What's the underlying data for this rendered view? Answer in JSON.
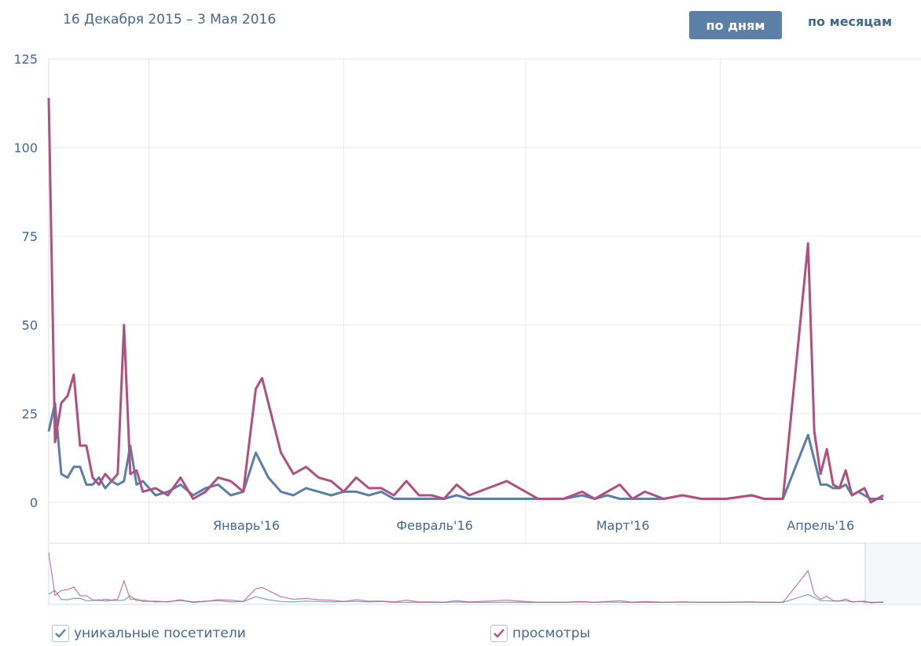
{
  "header": {
    "date_range": "16 Декабря 2015 – 3 Мая 2016",
    "btn_by_day": "по дням",
    "btn_by_month": "по месяцам"
  },
  "legend": {
    "unique_label": "уникальные посетители",
    "views_label": "просмотры"
  },
  "colors": {
    "unique": "#5b7fa6",
    "views": "#b0507f",
    "grid": "#e6e8ec",
    "axis_text": "#45678f"
  },
  "chart_data": {
    "type": "line",
    "x_start": "2015-12-16",
    "x_end": "2016-05-03",
    "ylim": [
      0,
      125
    ],
    "yticks": [
      0,
      25,
      50,
      75,
      100,
      125
    ],
    "month_ticks": [
      {
        "label": "Январь'16",
        "date": "2016-01-01"
      },
      {
        "label": "Февраль'16",
        "date": "2016-02-01"
      },
      {
        "label": "Март'16",
        "date": "2016-03-01"
      },
      {
        "label": "Апрель'16",
        "date": "2016-04-01"
      }
    ],
    "grid": true,
    "legend_position": "bottom",
    "series": [
      {
        "name": "уникальные посетители",
        "points": [
          [
            "2015-12-16",
            20
          ],
          [
            "2015-12-17",
            28
          ],
          [
            "2015-12-18",
            8
          ],
          [
            "2015-12-19",
            7
          ],
          [
            "2015-12-20",
            10
          ],
          [
            "2015-12-21",
            10
          ],
          [
            "2015-12-22",
            5
          ],
          [
            "2015-12-23",
            5
          ],
          [
            "2015-12-24",
            7
          ],
          [
            "2015-12-25",
            4
          ],
          [
            "2015-12-26",
            6
          ],
          [
            "2015-12-27",
            5
          ],
          [
            "2015-12-28",
            6
          ],
          [
            "2015-12-29",
            16
          ],
          [
            "2015-12-30",
            5
          ],
          [
            "2015-12-31",
            6
          ],
          [
            "2016-01-02",
            2
          ],
          [
            "2016-01-04",
            3
          ],
          [
            "2016-01-06",
            5
          ],
          [
            "2016-01-08",
            2
          ],
          [
            "2016-01-10",
            4
          ],
          [
            "2016-01-12",
            5
          ],
          [
            "2016-01-14",
            2
          ],
          [
            "2016-01-16",
            3
          ],
          [
            "2016-01-18",
            14
          ],
          [
            "2016-01-20",
            7
          ],
          [
            "2016-01-22",
            3
          ],
          [
            "2016-01-24",
            2
          ],
          [
            "2016-01-26",
            4
          ],
          [
            "2016-01-28",
            3
          ],
          [
            "2016-01-30",
            2
          ],
          [
            "2016-02-01",
            3
          ],
          [
            "2016-02-03",
            3
          ],
          [
            "2016-02-05",
            2
          ],
          [
            "2016-02-07",
            3
          ],
          [
            "2016-02-09",
            1
          ],
          [
            "2016-02-11",
            1
          ],
          [
            "2016-02-13",
            1
          ],
          [
            "2016-02-15",
            1
          ],
          [
            "2016-02-17",
            1
          ],
          [
            "2016-02-19",
            2
          ],
          [
            "2016-02-21",
            1
          ],
          [
            "2016-02-24",
            1
          ],
          [
            "2016-02-27",
            1
          ],
          [
            "2016-03-03",
            1
          ],
          [
            "2016-03-07",
            1
          ],
          [
            "2016-03-10",
            2
          ],
          [
            "2016-03-12",
            1
          ],
          [
            "2016-03-14",
            2
          ],
          [
            "2016-03-16",
            1
          ],
          [
            "2016-03-18",
            1
          ],
          [
            "2016-03-20",
            1
          ],
          [
            "2016-03-23",
            1
          ],
          [
            "2016-03-26",
            2
          ],
          [
            "2016-03-29",
            1
          ],
          [
            "2016-04-02",
            1
          ],
          [
            "2016-04-06",
            2
          ],
          [
            "2016-04-08",
            1
          ],
          [
            "2016-04-11",
            1
          ],
          [
            "2016-04-15",
            19
          ],
          [
            "2016-04-17",
            5
          ],
          [
            "2016-04-18",
            5
          ],
          [
            "2016-04-19",
            4
          ],
          [
            "2016-04-20",
            4
          ],
          [
            "2016-04-21",
            5
          ],
          [
            "2016-04-22",
            2
          ],
          [
            "2016-04-23",
            3
          ],
          [
            "2016-04-24",
            2
          ],
          [
            "2016-04-25",
            1
          ],
          [
            "2016-04-27",
            1
          ]
        ]
      },
      {
        "name": "просмотры",
        "points": [
          [
            "2015-12-16",
            114
          ],
          [
            "2015-12-17",
            17
          ],
          [
            "2015-12-18",
            28
          ],
          [
            "2015-12-19",
            30
          ],
          [
            "2015-12-20",
            36
          ],
          [
            "2015-12-21",
            16
          ],
          [
            "2015-12-22",
            16
          ],
          [
            "2015-12-23",
            7
          ],
          [
            "2015-12-24",
            5
          ],
          [
            "2015-12-25",
            8
          ],
          [
            "2015-12-26",
            6
          ],
          [
            "2015-12-27",
            8
          ],
          [
            "2015-12-28",
            50
          ],
          [
            "2015-12-29",
            8
          ],
          [
            "2015-12-30",
            9
          ],
          [
            "2015-12-31",
            3
          ],
          [
            "2016-01-02",
            4
          ],
          [
            "2016-01-04",
            2
          ],
          [
            "2016-01-06",
            7
          ],
          [
            "2016-01-08",
            1
          ],
          [
            "2016-01-10",
            3
          ],
          [
            "2016-01-12",
            7
          ],
          [
            "2016-01-14",
            6
          ],
          [
            "2016-01-16",
            3
          ],
          [
            "2016-01-18",
            32
          ],
          [
            "2016-01-19",
            35
          ],
          [
            "2016-01-22",
            14
          ],
          [
            "2016-01-24",
            8
          ],
          [
            "2016-01-26",
            10
          ],
          [
            "2016-01-28",
            7
          ],
          [
            "2016-01-30",
            6
          ],
          [
            "2016-02-01",
            3
          ],
          [
            "2016-02-03",
            7
          ],
          [
            "2016-02-05",
            4
          ],
          [
            "2016-02-07",
            4
          ],
          [
            "2016-02-09",
            2
          ],
          [
            "2016-02-11",
            6
          ],
          [
            "2016-02-13",
            2
          ],
          [
            "2016-02-15",
            2
          ],
          [
            "2016-02-17",
            1
          ],
          [
            "2016-02-19",
            5
          ],
          [
            "2016-02-21",
            2
          ],
          [
            "2016-02-24",
            4
          ],
          [
            "2016-02-27",
            6
          ],
          [
            "2016-03-03",
            1
          ],
          [
            "2016-03-07",
            1
          ],
          [
            "2016-03-10",
            3
          ],
          [
            "2016-03-12",
            1
          ],
          [
            "2016-03-14",
            3
          ],
          [
            "2016-03-16",
            5
          ],
          [
            "2016-03-18",
            1
          ],
          [
            "2016-03-20",
            3
          ],
          [
            "2016-03-23",
            1
          ],
          [
            "2016-03-26",
            2
          ],
          [
            "2016-03-29",
            1
          ],
          [
            "2016-04-02",
            1
          ],
          [
            "2016-04-06",
            2
          ],
          [
            "2016-04-08",
            1
          ],
          [
            "2016-04-11",
            1
          ],
          [
            "2016-04-15",
            73
          ],
          [
            "2016-04-16",
            20
          ],
          [
            "2016-04-17",
            8
          ],
          [
            "2016-04-18",
            15
          ],
          [
            "2016-04-19",
            5
          ],
          [
            "2016-04-20",
            4
          ],
          [
            "2016-04-21",
            9
          ],
          [
            "2016-04-22",
            2
          ],
          [
            "2016-04-23",
            3
          ],
          [
            "2016-04-24",
            4
          ],
          [
            "2016-04-25",
            0
          ],
          [
            "2016-04-27",
            2
          ]
        ]
      }
    ]
  }
}
